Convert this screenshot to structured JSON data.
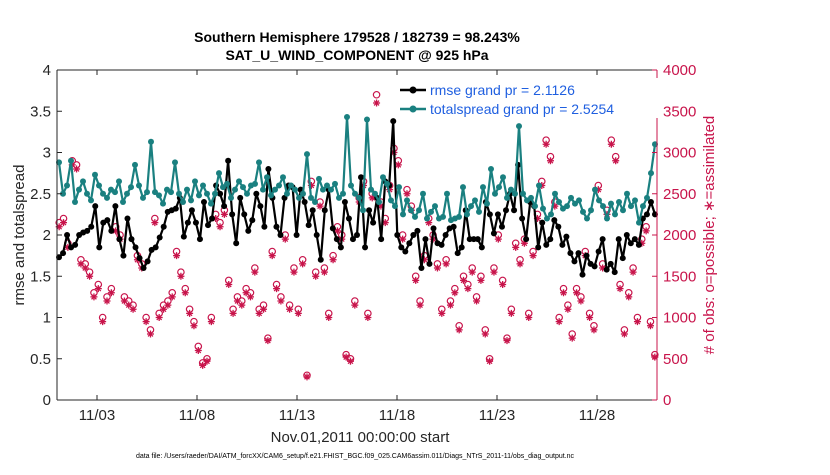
{
  "chart_data": {
    "type": "line",
    "title_line1": "Southern Hemisphere 179528 / 182739 = 98.243%",
    "title_line2": "SAT_U_WIND_COMPONENT @ 925 hPa",
    "xlabel": "Nov.01,2011 00:00:00 start",
    "ylabel_left": "rmse and totalspread",
    "ylabel_right": "# of obs: o=possible; ∗=assimilated",
    "footnote": "data file: /Users/raeder/DAI/ATM_forcXX/CAM6_setup/f.e21.FHIST_BGC.f09_025.CAM6assim.011/Diags_NTrS_2011-11/obs_diag_output.nc",
    "x_ticks": [
      {
        "label": "11/03",
        "day": 3
      },
      {
        "label": "11/08",
        "day": 8
      },
      {
        "label": "11/13",
        "day": 13
      },
      {
        "label": "11/18",
        "day": 18
      },
      {
        "label": "11/23",
        "day": 23
      },
      {
        "label": "11/28",
        "day": 28
      }
    ],
    "xlim": [
      1.0,
      31.0
    ],
    "ylim_left": [
      0,
      4
    ],
    "ylim_right": [
      0,
      4000
    ],
    "y_ticks_left": [
      "0",
      "0.5",
      "1",
      "1.5",
      "2",
      "2.5",
      "3",
      "3.5",
      "4"
    ],
    "y_ticks_right": [
      "0",
      "500",
      "1000",
      "1500",
      "2000",
      "2500",
      "3000",
      "3500",
      "4000"
    ],
    "series": [
      {
        "name": "rmse",
        "legend": "rmse grand pr = 2.1126",
        "color": "#000000",
        "values": [
          1.73,
          1.78,
          2.0,
          1.85,
          1.88,
          2.0,
          2.03,
          2.05,
          2.1,
          2.35,
          1.85,
          2.15,
          2.18,
          2.05,
          2.35,
          1.95,
          1.75,
          2.2,
          1.95,
          1.85,
          1.72,
          1.6,
          1.68,
          1.82,
          1.85,
          1.97,
          2.1,
          2.28,
          2.3,
          2.32,
          2.45,
          1.98,
          2.15,
          2.3,
          2.15,
          1.95,
          2.4,
          2.12,
          2.2,
          2.6,
          2.5,
          2.35,
          2.9,
          2.25,
          1.9,
          2.45,
          2.25,
          2.05,
          2.18,
          2.5,
          2.35,
          2.1,
          2.8,
          2.45,
          2.1,
          2.0,
          2.45,
          2.6,
          2.58,
          2.0,
          2.55,
          2.4,
          2.12,
          2.3,
          2.0,
          1.7,
          2.3,
          2.55,
          2.08,
          1.95,
          1.85,
          2.4,
          2.2,
          1.95,
          2.0,
          2.7,
          1.85,
          2.3,
          2.15,
          2.45,
          1.95,
          2.65,
          2.6,
          3.38,
          2.0,
          1.85,
          1.8,
          1.9,
          2.0,
          2.05,
          1.6,
          1.95,
          1.65,
          2.08,
          1.9,
          1.88,
          2.0,
          2.08,
          2.1,
          1.78,
          1.85,
          2.3,
          1.95,
          1.95,
          1.95,
          1.85,
          2.4,
          2.25,
          2.02,
          2.25,
          2.1,
          2.3,
          2.5,
          2.3,
          2.85,
          2.2,
          1.95,
          2.4,
          2.35,
          1.85,
          2.15,
          1.88,
          1.95,
          2.18,
          2.1,
          1.88,
          1.98,
          1.78,
          1.68,
          1.78,
          1.52,
          1.75,
          1.65,
          1.62,
          1.8,
          1.95,
          1.58,
          1.65,
          1.55,
          1.95,
          1.72,
          2.0,
          1.9,
          1.95,
          1.88,
          2.2,
          2.25,
          2.4,
          2.25
        ],
        "markers_every": 1
      },
      {
        "name": "totalspread",
        "legend": "totalspread grand pr = 2.5254",
        "color": "#1a8080",
        "values": [
          2.88,
          2.5,
          2.6,
          2.9,
          2.4,
          2.55,
          2.65,
          2.5,
          2.42,
          2.73,
          2.6,
          2.5,
          2.45,
          2.55,
          2.52,
          2.65,
          2.4,
          2.5,
          2.58,
          2.85,
          2.6,
          2.45,
          2.52,
          3.13,
          2.52,
          2.48,
          2.38,
          2.55,
          2.52,
          2.88,
          2.5,
          2.4,
          2.55,
          2.42,
          2.65,
          2.48,
          2.6,
          2.5,
          2.38,
          2.5,
          2.75,
          2.58,
          2.62,
          2.45,
          2.55,
          2.65,
          2.58,
          2.5,
          2.6,
          2.62,
          2.88,
          2.55,
          2.7,
          2.48,
          2.55,
          2.6,
          2.7,
          2.5,
          2.6,
          2.55,
          2.45,
          2.5,
          2.98,
          2.45,
          2.4,
          2.68,
          2.55,
          2.6,
          2.55,
          2.62,
          2.45,
          2.5,
          3.43,
          2.6,
          2.5,
          2.45,
          2.3,
          3.4,
          2.55,
          2.5,
          2.4,
          2.7,
          2.62,
          2.42,
          2.35,
          2.58,
          2.25,
          2.42,
          2.3,
          2.22,
          2.3,
          2.5,
          2.2,
          2.28,
          2.35,
          2.2,
          2.22,
          2.5,
          2.18,
          2.2,
          2.22,
          2.58,
          2.25,
          2.35,
          2.42,
          2.28,
          2.58,
          2.38,
          2.8,
          2.5,
          2.58,
          2.7,
          2.45,
          2.55,
          2.5,
          3.32,
          2.5,
          2.42,
          2.45,
          2.35,
          2.6,
          2.32,
          2.2,
          2.25,
          2.5,
          2.4,
          2.32,
          2.35,
          2.45,
          2.38,
          2.42,
          2.28,
          2.2,
          2.3,
          2.55,
          2.42,
          2.35,
          2.2,
          2.38,
          2.25,
          2.4,
          2.3,
          2.5,
          2.35,
          2.42,
          2.15,
          2.35,
          2.45,
          2.75,
          3.1
        ],
        "markers_every": 1
      },
      {
        "name": "obs_possible",
        "color": "#c8144b",
        "axis": "right",
        "values": [
          2150,
          2200,
          1900,
          2900,
          2850,
          1700,
          1650,
          1550,
          1300,
          1400,
          1000,
          1250,
          1350,
          2100,
          2000,
          1250,
          1200,
          1150,
          1750,
          1650,
          1000,
          850,
          2200,
          1050,
          1150,
          1200,
          1300,
          1800,
          1550,
          1350,
          1100,
          950,
          650,
          450,
          500,
          1000,
          2250,
          2150,
          2300,
          1450,
          1100,
          1250,
          1200,
          1350,
          1300,
          1600,
          1100,
          1150,
          750,
          1800,
          1400,
          1250,
          2000,
          1150,
          1600,
          1100,
          1700,
          300,
          2650,
          1550,
          2400,
          1600,
          1050,
          1750,
          2100,
          2000,
          550,
          500,
          1200,
          2450,
          2650,
          1050,
          2500,
          3700,
          2400,
          2200,
          2600,
          3050,
          2900,
          2000,
          2550,
          2350,
          1500,
          1200,
          1750,
          2200,
          2000,
          1650,
          1100,
          1700,
          1200,
          1350,
          900,
          1500,
          1400,
          1600,
          1250,
          1500,
          850,
          500,
          1600,
          2000,
          1450,
          750,
          1100,
          1900,
          1700,
          1950,
          1050,
          1800,
          2250,
          2650,
          3150,
          2950,
          2400,
          1000,
          1350,
          1150,
          800,
          1350,
          1250,
          1800,
          1050,
          900,
          2600,
          1650,
          2300,
          3150,
          2950,
          1400,
          850,
          1300,
          1600,
          1000,
          1950,
          2100,
          950,
          550
        ],
        "marker": "o"
      },
      {
        "name": "obs_assimilated",
        "color": "#c8144b",
        "axis": "right",
        "values": [
          2100,
          2150,
          1850,
          2850,
          2800,
          1650,
          1600,
          1500,
          1250,
          1350,
          950,
          1200,
          1300,
          2050,
          1950,
          1200,
          1150,
          1100,
          1700,
          1600,
          950,
          800,
          2150,
          1000,
          1100,
          1150,
          1250,
          1750,
          1500,
          1300,
          1050,
          900,
          600,
          420,
          470,
          950,
          2200,
          2100,
          2250,
          1400,
          1050,
          1200,
          1150,
          1300,
          1250,
          1550,
          1050,
          1100,
          720,
          1750,
          1350,
          1200,
          1950,
          1100,
          1550,
          1050,
          1650,
          280,
          2600,
          1500,
          2350,
          1550,
          1000,
          1700,
          2050,
          1950,
          520,
          470,
          1150,
          2400,
          2600,
          1000,
          2450,
          3600,
          2350,
          2150,
          2550,
          3000,
          2850,
          1950,
          2500,
          2300,
          1450,
          1150,
          1700,
          2150,
          1950,
          1600,
          1050,
          1650,
          1150,
          1300,
          850,
          1450,
          1350,
          1550,
          1200,
          1450,
          800,
          470,
          1550,
          1950,
          1400,
          720,
          1050,
          1850,
          1650,
          1900,
          1000,
          1750,
          2200,
          2600,
          3100,
          2900,
          2350,
          950,
          1300,
          1100,
          750,
          1300,
          1200,
          1750,
          1000,
          850,
          2550,
          1600,
          2250,
          3100,
          2900,
          1350,
          800,
          1250,
          1550,
          950,
          1900,
          2050,
          900,
          520
        ],
        "marker": "*"
      }
    ]
  },
  "legend": {
    "rmse_label": "rmse grand pr = 2.1126",
    "spread_label": "totalspread grand pr = 2.5254"
  }
}
